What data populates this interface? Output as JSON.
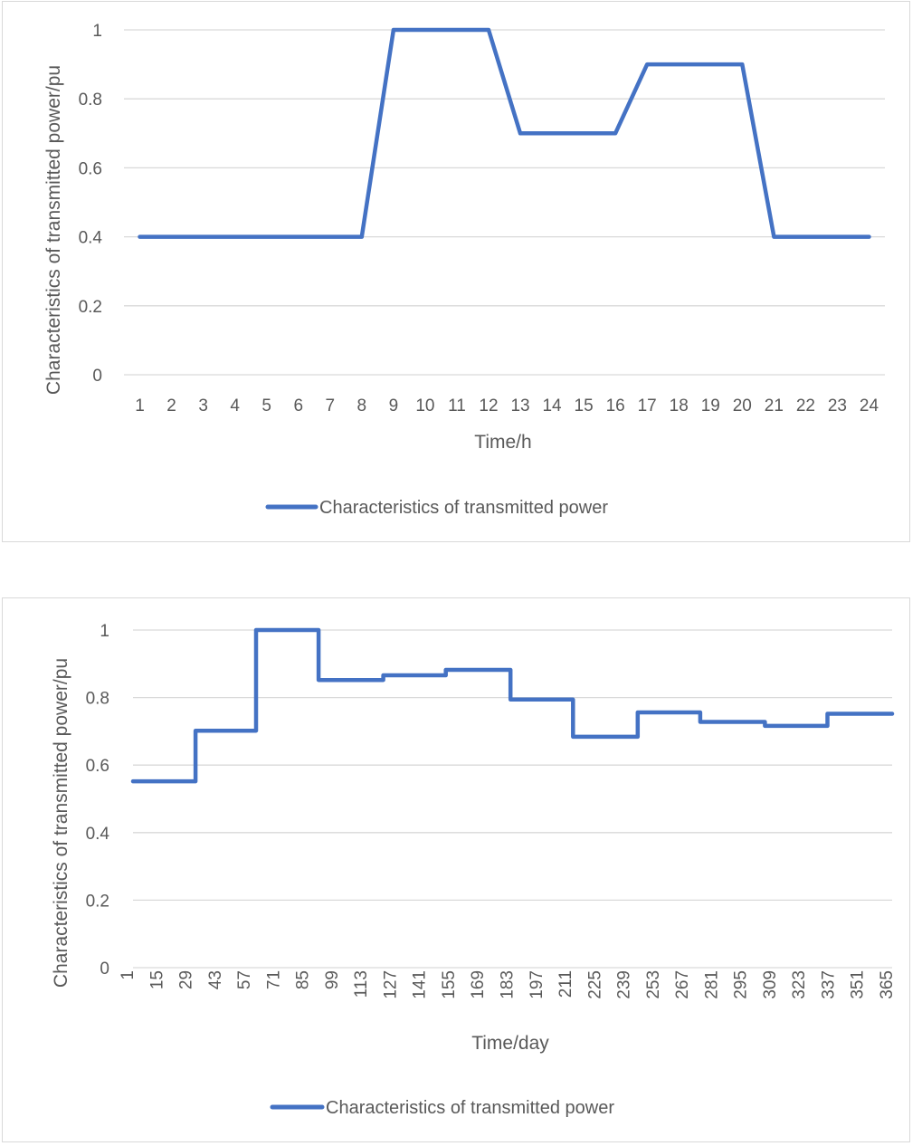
{
  "chart_data": [
    {
      "type": "line",
      "title": "",
      "xlabel": "Time/h",
      "ylabel": "Characteristics of transmitted power/pu",
      "ylim": [
        0,
        1
      ],
      "yticks": [
        "0",
        "0.2",
        "0.4",
        "0.6",
        "0.8",
        "1"
      ],
      "grid": true,
      "legend_position": "bottom",
      "categories": [
        "1",
        "2",
        "3",
        "4",
        "5",
        "6",
        "7",
        "8",
        "9",
        "10",
        "11",
        "12",
        "13",
        "14",
        "15",
        "16",
        "17",
        "18",
        "19",
        "20",
        "21",
        "22",
        "23",
        "24"
      ],
      "series": [
        {
          "name": "Characteristics of transmitted power",
          "color": "#4472c4",
          "values": [
            0.4,
            0.4,
            0.4,
            0.4,
            0.4,
            0.4,
            0.4,
            0.4,
            1,
            1,
            1,
            1,
            0.7,
            0.7,
            0.7,
            0.7,
            0.9,
            0.9,
            0.9,
            0.9,
            0.4,
            0.4,
            0.4,
            0.4
          ]
        }
      ]
    },
    {
      "type": "line",
      "title": "",
      "xlabel": "Time/day",
      "ylabel": "Characteristics of transmitted power/pu",
      "ylim": [
        0,
        1
      ],
      "xlim": [
        1,
        365
      ],
      "yticks": [
        "0",
        "0.2",
        "0.4",
        "0.6",
        "0.8",
        "1"
      ],
      "grid": true,
      "legend_position": "bottom",
      "categories": [
        "1",
        "15",
        "29",
        "43",
        "57",
        "71",
        "85",
        "99",
        "113",
        "127",
        "141",
        "155",
        "169",
        "183",
        "197",
        "211",
        "225",
        "239",
        "253",
        "267",
        "281",
        "295",
        "309",
        "323",
        "337",
        "351",
        "365"
      ],
      "series": [
        {
          "name": "Characteristics of transmitted power",
          "color": "#4472c4",
          "step_points": [
            [
              1,
              0.552
            ],
            [
              31,
              0.552
            ],
            [
              31,
              0.702
            ],
            [
              60,
              0.702
            ],
            [
              60,
              1.0
            ],
            [
              90,
              1.0
            ],
            [
              90,
              0.852
            ],
            [
              121,
              0.852
            ],
            [
              121,
              0.866
            ],
            [
              151,
              0.866
            ],
            [
              151,
              0.882
            ],
            [
              182,
              0.882
            ],
            [
              182,
              0.794
            ],
            [
              212,
              0.794
            ],
            [
              212,
              0.684
            ],
            [
              243,
              0.684
            ],
            [
              243,
              0.756
            ],
            [
              273,
              0.756
            ],
            [
              273,
              0.728
            ],
            [
              304,
              0.728
            ],
            [
              304,
              0.716
            ],
            [
              334,
              0.716
            ],
            [
              334,
              0.752
            ],
            [
              365,
              0.752
            ]
          ]
        }
      ]
    }
  ]
}
